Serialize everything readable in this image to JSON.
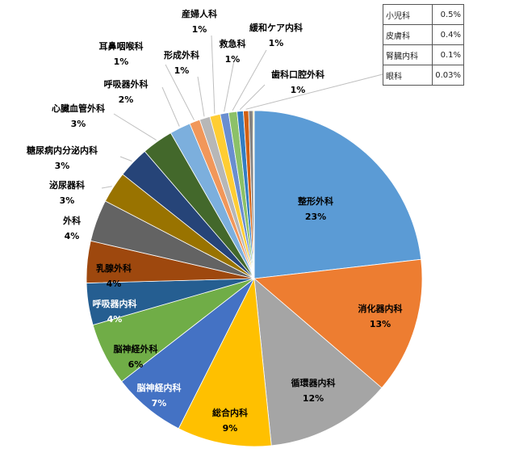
{
  "chart_data": {
    "type": "pie",
    "unit": "%",
    "colors": {
      "leader_line": "#bfbfbf",
      "label_dark": "#000000",
      "label_light": "#ffffff"
    },
    "slices": [
      {
        "label": "整形外科",
        "value": 23,
        "display": "23%",
        "color": "#5b9bd5"
      },
      {
        "label": "消化器内科",
        "value": 13,
        "display": "13%",
        "color": "#ed7d31"
      },
      {
        "label": "循環器内科",
        "value": 12,
        "display": "12%",
        "color": "#a5a5a5"
      },
      {
        "label": "総合内科",
        "value": 9,
        "display": "9%",
        "color": "#ffc000"
      },
      {
        "label": "脳神経内科",
        "value": 7,
        "display": "7%",
        "color": "#4472c4"
      },
      {
        "label": "脳神経外科",
        "value": 6,
        "display": "6%",
        "color": "#70ad47"
      },
      {
        "label": "呼吸器内科",
        "value": 4,
        "display": "4%",
        "color": "#255e91"
      },
      {
        "label": "乳腺外科",
        "value": 4,
        "display": "4%",
        "color": "#9e480e"
      },
      {
        "label": "外科",
        "value": 4,
        "display": "4%",
        "color": "#636363"
      },
      {
        "label": "泌尿器科",
        "value": 3,
        "display": "3%",
        "color": "#997300"
      },
      {
        "label": "糖尿病内分泌内科",
        "value": 3,
        "display": "3%",
        "color": "#264478"
      },
      {
        "label": "心臓血管外科",
        "value": 3,
        "display": "3%",
        "color": "#43682b"
      },
      {
        "label": "呼吸器外科",
        "value": 2,
        "display": "2%",
        "color": "#7cafdd"
      },
      {
        "label": "耳鼻咽喉科",
        "value": 1,
        "display": "1%",
        "color": "#f1975a"
      },
      {
        "label": "形成外科",
        "value": 1,
        "display": "1%",
        "color": "#b7b7b7"
      },
      {
        "label": "産婦人科",
        "value": 1,
        "display": "1%",
        "color": "#ffcd33"
      },
      {
        "label": "救急科",
        "value": 0.8,
        "display": "1%",
        "color": "#698ed0"
      },
      {
        "label": "緩和ケア内科",
        "value": 0.8,
        "display": "1%",
        "color": "#8cc168"
      },
      {
        "label": "歯科口腔外科",
        "value": 0.6,
        "display": "1%",
        "color": "#327dc2"
      },
      {
        "label": "小児科",
        "value": 0.5,
        "display": "0.5%",
        "color": "#d26012"
      },
      {
        "label": "皮膚科",
        "value": 0.4,
        "display": "0.4%",
        "color": "#848484"
      },
      {
        "label": "腎臓内科",
        "value": 0.1,
        "display": "0.1%",
        "color": "#cc9a00"
      },
      {
        "label": "眼科",
        "value": 0.03,
        "display": "0.03%",
        "color": "#335aa1"
      }
    ]
  },
  "side_table": [
    {
      "name": "小児科",
      "value": "0.5%"
    },
    {
      "name": "皮膚科",
      "value": "0.4%"
    },
    {
      "name": "腎臓内科",
      "value": "0.1%"
    },
    {
      "name": "眼科",
      "value": "0.03%"
    }
  ]
}
